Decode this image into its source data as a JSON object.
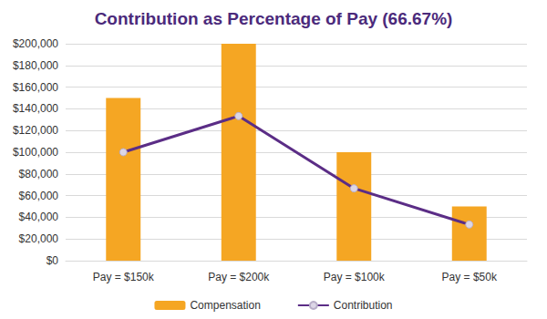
{
  "chart_data": {
    "type": "bar",
    "title": "Contribution as Percentage of Pay (66.67%)",
    "categories": [
      "Pay = $150k",
      "Pay = $200k",
      "Pay = $100k",
      "Pay = $50k"
    ],
    "series": [
      {
        "name": "Compensation",
        "type": "bar",
        "color": "#f5a623",
        "values": [
          150000,
          200000,
          100000,
          50000
        ]
      },
      {
        "name": "Contribution",
        "type": "line",
        "color": "#5b2d86",
        "marker": "circle",
        "line_style": "solid",
        "values": [
          100000,
          133333,
          66667,
          33333
        ]
      }
    ],
    "ylim": [
      0,
      200000
    ],
    "yticks": [
      {
        "value": 0,
        "label": "$0"
      },
      {
        "value": 20000,
        "label": "$20,000"
      },
      {
        "value": 40000,
        "label": "$40,000"
      },
      {
        "value": 60000,
        "label": "$60,000"
      },
      {
        "value": 80000,
        "label": "$80,000"
      },
      {
        "value": 100000,
        "label": "$100,000"
      },
      {
        "value": 120000,
        "label": "$120,000"
      },
      {
        "value": 140000,
        "label": "$140,000"
      },
      {
        "value": 160000,
        "label": "$160,000"
      },
      {
        "value": 180000,
        "label": "$180,000"
      },
      {
        "value": 200000,
        "label": "$200,000"
      }
    ],
    "grid": true,
    "legend": "bottom"
  }
}
